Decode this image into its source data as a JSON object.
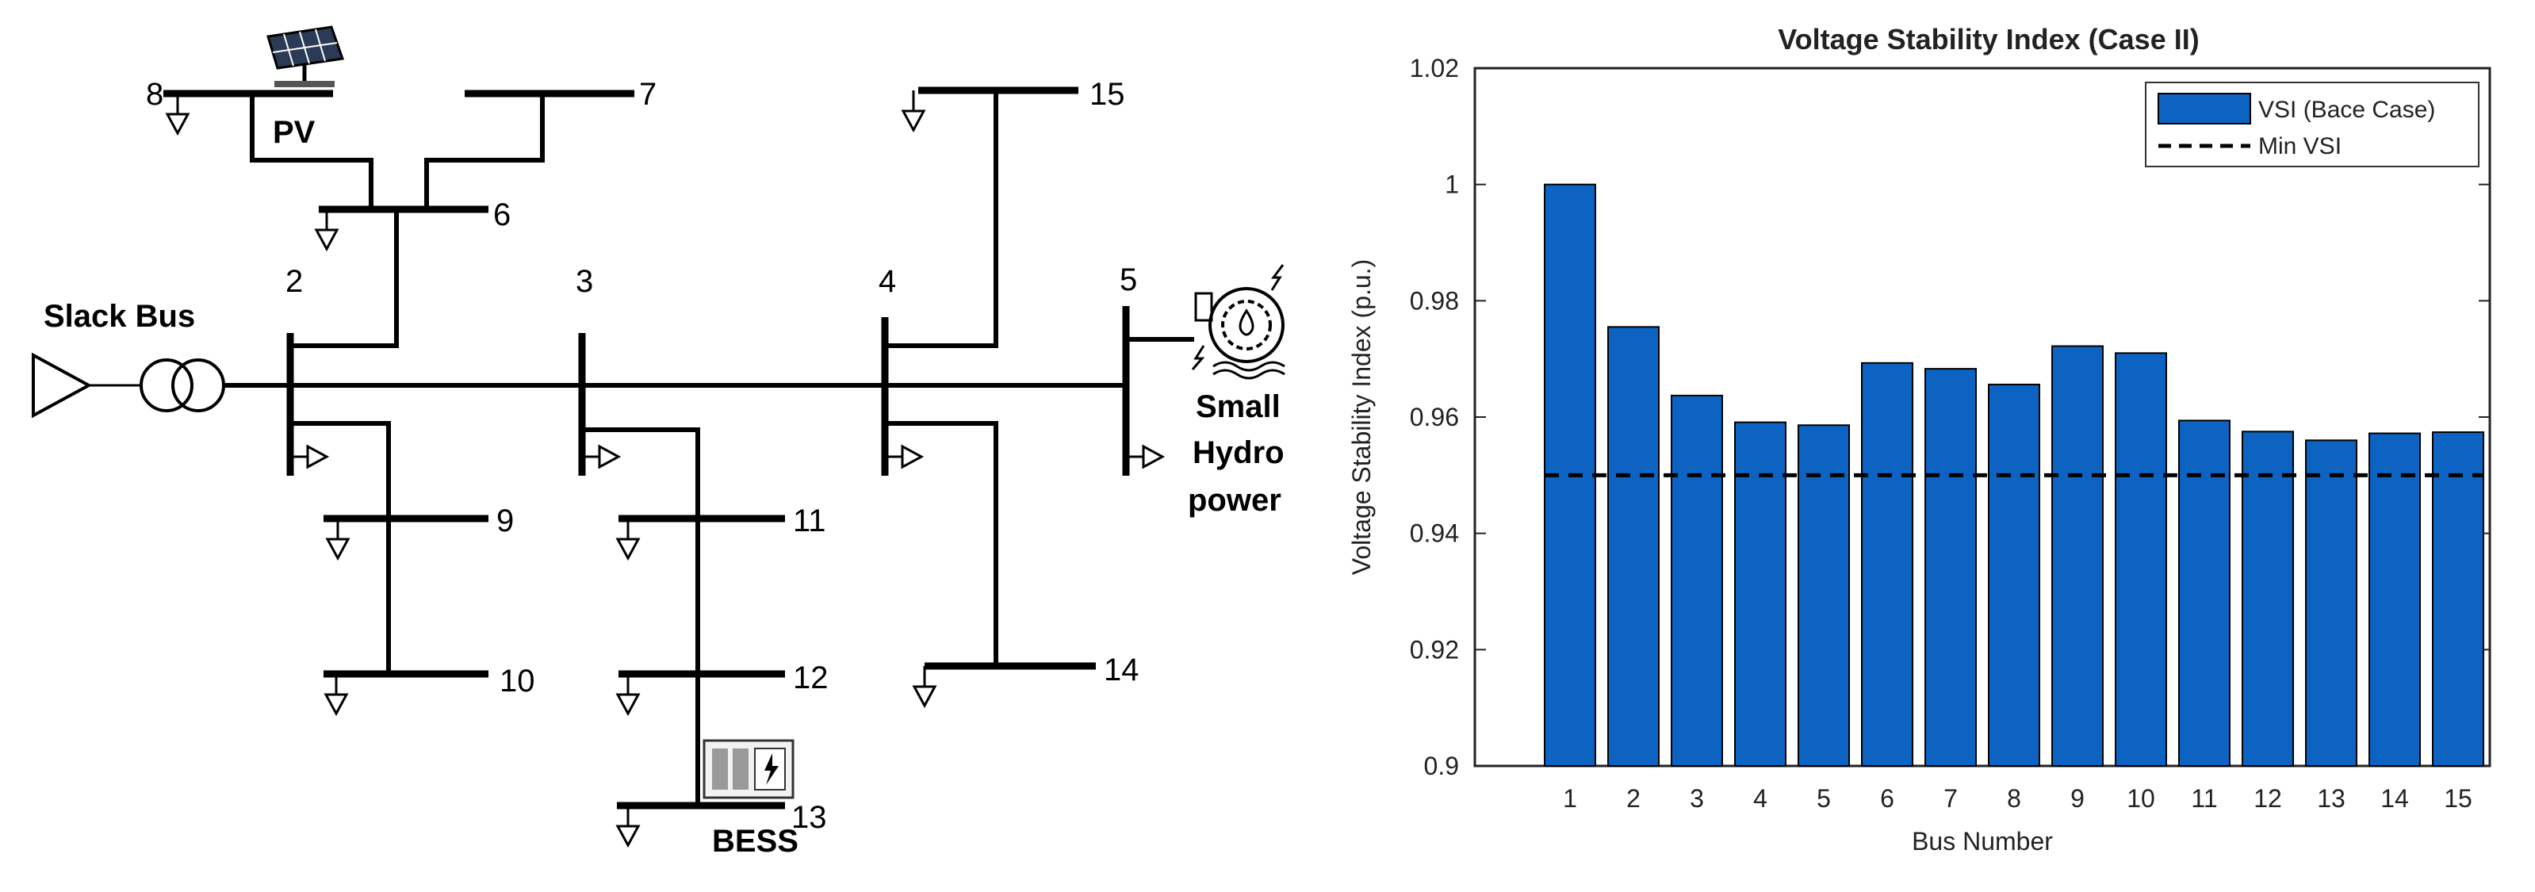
{
  "diagram": {
    "slack_label": "Slack Bus",
    "pv_label": "PV",
    "hydro_label_lines": [
      "Small",
      "Hydro",
      "power"
    ],
    "bess_label": "BESS",
    "bus_labels": {
      "b1": "2",
      "b2": "3",
      "b3": "4",
      "b4": "5",
      "b5": "6",
      "b6": "7",
      "b7": "8",
      "b8": "9",
      "b9": "10",
      "b10": "11",
      "b11": "12",
      "b12": "13",
      "b13": "14",
      "b14": "15"
    },
    "icons": [
      "solar-panel-icon",
      "hydro-turbine-icon",
      "battery-storage-icon",
      "transformer-icon",
      "slack-source-icon",
      "load-arrow-icon"
    ]
  },
  "chart_data": {
    "type": "bar",
    "title": "Voltage Stability Index (Case II)",
    "xlabel": "Bus Number",
    "ylabel": "Voltage Stability Index (p.u.)",
    "categories": [
      "1",
      "2",
      "3",
      "4",
      "5",
      "6",
      "7",
      "8",
      "9",
      "10",
      "11",
      "12",
      "13",
      "14",
      "15"
    ],
    "series": [
      {
        "name": "VSI (Bace Case)",
        "color": "#0d63c2",
        "values": [
          1.0,
          0.9755,
          0.9637,
          0.9591,
          0.9586,
          0.9693,
          0.9683,
          0.9656,
          0.9722,
          0.971,
          0.9594,
          0.9575,
          0.956,
          0.9572,
          0.9574
        ]
      }
    ],
    "reference_line": {
      "name": "Min VSI",
      "value": 0.95,
      "style": "dashed",
      "color": "#000000"
    },
    "ylim": [
      0.9,
      1.02
    ],
    "yticks": [
      0.9,
      0.92,
      0.94,
      0.96,
      0.98,
      1,
      1.02
    ],
    "ytick_labels": [
      "0.9",
      "0.92",
      "0.94",
      "0.96",
      "0.98",
      "1",
      "1.02"
    ],
    "grid": false,
    "legend_position": "top-right"
  }
}
